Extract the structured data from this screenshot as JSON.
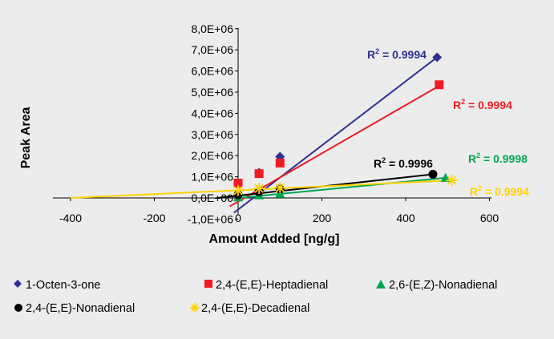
{
  "chart_data": {
    "type": "scatter",
    "title": "",
    "xlabel": "Amount Added [ng/g]",
    "ylabel": "Peak Area",
    "xlim": [
      -400,
      600
    ],
    "ylim": [
      -1000000,
      8000000
    ],
    "x_ticks": [
      -400,
      -200,
      0,
      200,
      400,
      600
    ],
    "x_tick_labels": [
      "-400",
      "-200",
      "0",
      "200",
      "400",
      "600"
    ],
    "y_ticks": [
      -1000000,
      0,
      1000000,
      2000000,
      3000000,
      4000000,
      5000000,
      6000000,
      7000000,
      8000000
    ],
    "y_tick_labels": [
      "-1,0E+06",
      "0,0E+00",
      "1,0E+06",
      "2,0E+06",
      "3,0E+06",
      "4,0E+06",
      "5,0E+06",
      "6,0E+06",
      "7,0E+06",
      "8,0E+06"
    ],
    "grid": false,
    "legend_position": "bottom",
    "series": [
      {
        "name": "1-Octen-3-one",
        "marker": "diamond",
        "color": "#2e3192",
        "points": [
          [
            0,
            680000
          ],
          [
            50,
            1200000
          ],
          [
            100,
            1950000
          ],
          [
            475,
            6650000
          ]
        ],
        "trendline": [
          [
            -10,
            -700000
          ],
          [
            475,
            6650000
          ]
        ],
        "r2_label": "R",
        "r2_sup": "2",
        "r2_value": " = 0.9994",
        "label_color": "#2e3192"
      },
      {
        "name": "2,4-(E,E)-Heptadienal",
        "marker": "square",
        "color": "#ed1c24",
        "points": [
          [
            0,
            700000
          ],
          [
            50,
            1150000
          ],
          [
            100,
            1650000
          ],
          [
            480,
            5350000
          ]
        ],
        "trendline": [
          [
            -20,
            -400000
          ],
          [
            480,
            5300000
          ]
        ],
        "r2_label": "R",
        "r2_sup": "2",
        "r2_value": " = 0.9994",
        "label_color": "#ed1c24"
      },
      {
        "name": "2,6-(E,Z)-Nonadienal",
        "marker": "triangle",
        "color": "#00a651",
        "points": [
          [
            0,
            30000
          ],
          [
            50,
            130000
          ],
          [
            100,
            200000
          ],
          [
            495,
            950000
          ]
        ],
        "trendline": [
          [
            0,
            0
          ],
          [
            495,
            950000
          ]
        ],
        "r2_label": "R",
        "r2_sup": "2",
        "r2_value": " = 0.9998",
        "label_color": "#00a651"
      },
      {
        "name": "2,4-(E,E)-Nonadienal",
        "marker": "circle",
        "color": "#000000",
        "points": [
          [
            0,
            150000
          ],
          [
            50,
            300000
          ],
          [
            100,
            420000
          ],
          [
            465,
            1120000
          ]
        ],
        "trendline": [
          [
            -50,
            0
          ],
          [
            465,
            1120000
          ]
        ],
        "r2_label": "R",
        "r2_sup": "2",
        "r2_value": " = 0.9996",
        "label_color": "#000000"
      },
      {
        "name": "2,4-(E,E)-Decadienal",
        "marker": "asterisk",
        "color": "#ffd200",
        "points": [
          [
            0,
            350000
          ],
          [
            50,
            450000
          ],
          [
            100,
            480000
          ],
          [
            510,
            830000
          ]
        ],
        "trendline": [
          [
            -400,
            0
          ],
          [
            510,
            830000
          ]
        ],
        "r2_label": "R",
        "r2_sup": "2",
        "r2_value": " = 0.9994",
        "label_color": "#ffd200"
      }
    ]
  }
}
